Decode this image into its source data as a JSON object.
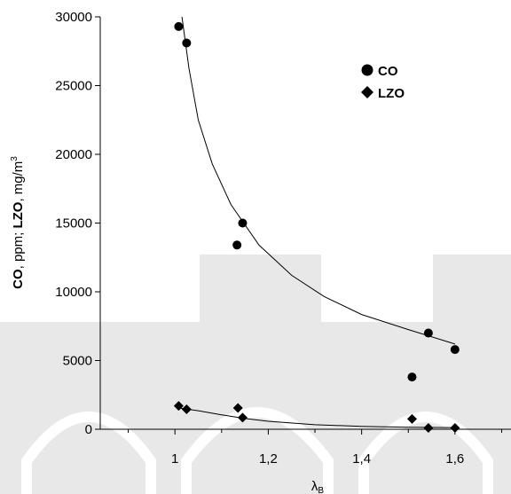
{
  "chart_data": {
    "type": "scatter",
    "title": "",
    "xlabel": "λ",
    "xlabel_subscript": "B",
    "ylabel_parts": [
      "CO",
      ", ppm; ",
      "LZO",
      ", mg/m",
      "3"
    ],
    "xlim": [
      0.84,
      1.72
    ],
    "ylim": [
      0,
      30000
    ],
    "x_ticks": [
      1.0,
      1.2,
      1.4,
      1.6
    ],
    "x_tick_labels": [
      "1",
      "1,2",
      "1,4",
      "1,6"
    ],
    "y_ticks": [
      0,
      5000,
      10000,
      15000,
      20000,
      25000,
      30000
    ],
    "y_tick_labels": [
      "0",
      "5000",
      "10000",
      "15000",
      "20000",
      "25000",
      "30000"
    ],
    "legend_position": "top-right",
    "grid": false,
    "series": [
      {
        "name": "CO",
        "marker": "circle",
        "color": "#000000",
        "points": [
          [
            1.008,
            29300
          ],
          [
            1.025,
            28100
          ],
          [
            1.133,
            13400
          ],
          [
            1.145,
            15000
          ],
          [
            1.508,
            3800
          ],
          [
            1.543,
            7000
          ],
          [
            1.6,
            5800
          ]
        ],
        "trend": [
          [
            1.015,
            30000
          ],
          [
            1.03,
            26250
          ],
          [
            1.05,
            22500
          ],
          [
            1.08,
            19300
          ],
          [
            1.12,
            16350
          ],
          [
            1.18,
            13400
          ],
          [
            1.25,
            11200
          ],
          [
            1.32,
            9650
          ],
          [
            1.4,
            8350
          ],
          [
            1.5,
            7250
          ],
          [
            1.6,
            6200
          ]
        ]
      },
      {
        "name": "LZO",
        "marker": "diamond",
        "color": "#000000",
        "points": [
          [
            1.008,
            1700
          ],
          [
            1.025,
            1450
          ],
          [
            1.135,
            1550
          ],
          [
            1.145,
            850
          ],
          [
            1.508,
            750
          ],
          [
            1.543,
            100
          ],
          [
            1.6,
            100
          ]
        ],
        "trend": [
          [
            1.008,
            1550
          ],
          [
            1.05,
            1350
          ],
          [
            1.1,
            1050
          ],
          [
            1.15,
            780
          ],
          [
            1.2,
            580
          ],
          [
            1.3,
            330
          ],
          [
            1.4,
            210
          ],
          [
            1.5,
            150
          ],
          [
            1.6,
            120
          ]
        ]
      }
    ]
  },
  "watermark_color": "#e6e6e6"
}
